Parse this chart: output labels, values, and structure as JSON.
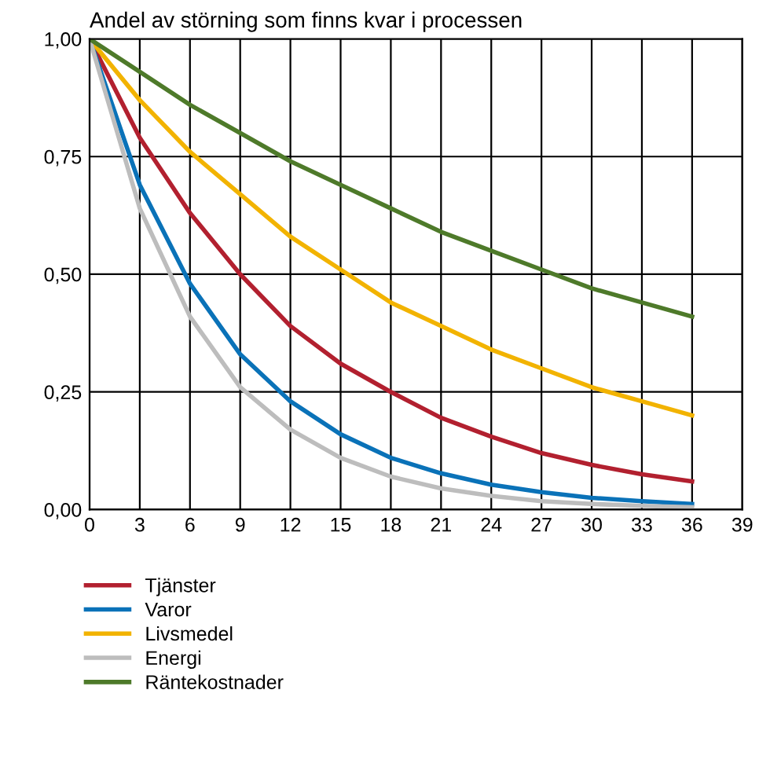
{
  "chart_data": {
    "type": "line",
    "title": "Andel av störning som finns kvar i processen",
    "x": [
      0,
      3,
      6,
      9,
      12,
      15,
      18,
      21,
      24,
      27,
      30,
      33,
      36
    ],
    "series": [
      {
        "name": "Tjänster",
        "color": "#b2202f",
        "values": [
          1,
          0.79,
          0.63,
          0.5,
          0.39,
          0.31,
          0.25,
          0.195,
          0.155,
          0.12,
          0.095,
          0.075,
          0.06
        ]
      },
      {
        "name": "Varor",
        "color": "#0a72b8",
        "values": [
          1,
          0.69,
          0.48,
          0.33,
          0.23,
          0.16,
          0.11,
          0.077,
          0.053,
          0.037,
          0.025,
          0.018,
          0.012
        ]
      },
      {
        "name": "Livsmedel",
        "color": "#f2b300",
        "values": [
          1,
          0.87,
          0.76,
          0.67,
          0.58,
          0.51,
          0.44,
          0.39,
          0.34,
          0.3,
          0.26,
          0.23,
          0.2
        ]
      },
      {
        "name": "Energi",
        "color": "#bdbdbd",
        "values": [
          1,
          0.64,
          0.41,
          0.26,
          0.17,
          0.11,
          0.07,
          0.045,
          0.029,
          0.018,
          0.012,
          0.008,
          0.005
        ]
      },
      {
        "name": "Räntekostnader",
        "color": "#4e7a2a",
        "values": [
          1,
          0.93,
          0.86,
          0.8,
          0.74,
          0.69,
          0.64,
          0.59,
          0.55,
          0.51,
          0.47,
          0.44,
          0.41
        ]
      }
    ],
    "xlim": [
      0,
      39
    ],
    "xticks": [
      0,
      3,
      6,
      9,
      12,
      15,
      18,
      21,
      24,
      27,
      30,
      33,
      36,
      39
    ],
    "ylim": [
      0,
      1
    ],
    "yticks": [
      {
        "value": 0,
        "label": "0,00"
      },
      {
        "value": 0.25,
        "label": "0,25"
      },
      {
        "value": 0.5,
        "label": "0,50"
      },
      {
        "value": 0.75,
        "label": "0,75"
      },
      {
        "value": 1,
        "label": "1,00"
      }
    ],
    "grid": true,
    "legend": "bottom",
    "marker": "none",
    "line_style": "solid"
  }
}
